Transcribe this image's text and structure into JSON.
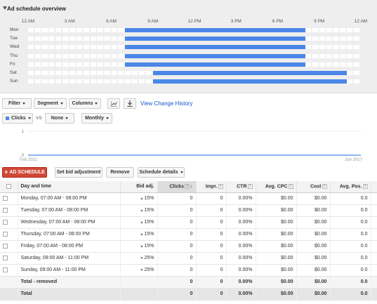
{
  "overview": {
    "title": "Ad schedule overview",
    "hours": [
      "12 AM",
      "3 AM",
      "6 AM",
      "9 AM",
      "12 PM",
      "3 PM",
      "6 PM",
      "9 PM",
      "12 AM"
    ],
    "days": [
      {
        "label": "Mon",
        "start": 7,
        "end": 20
      },
      {
        "label": "Tue",
        "start": 7,
        "end": 20
      },
      {
        "label": "Wed",
        "start": 7,
        "end": 20
      },
      {
        "label": "Thu",
        "start": 7,
        "end": 20
      },
      {
        "label": "Fri",
        "start": 7,
        "end": 20
      },
      {
        "label": "Sat",
        "start": 9,
        "end": 23
      },
      {
        "label": "Sun",
        "start": 9,
        "end": 23
      }
    ],
    "bar_color": "#4a86e8"
  },
  "toolbar": {
    "filter": "Filter",
    "segment": "Segment",
    "columns": "Columns",
    "history": "View Change History"
  },
  "chart_controls": {
    "metric1": "Clicks",
    "vs": "VS",
    "metric2": "None",
    "period": "Monthly"
  },
  "chart_data": {
    "type": "line",
    "x": [
      "Feb 2011",
      "Jun 2017"
    ],
    "series": [
      {
        "values": [
          0,
          0
        ]
      }
    ],
    "ylim": [
      0,
      1
    ],
    "yticks": [
      "1",
      "0"
    ],
    "xlabels": [
      "Feb 2011",
      "Jun 2017"
    ],
    "color": "#4a86e8"
  },
  "actions": {
    "add": "AD SCHEDULE",
    "bid": "Set bid adjustment",
    "remove": "Remove",
    "details": "Schedule details"
  },
  "table": {
    "headers": {
      "day": "Day and time",
      "bid": "Bid adj.",
      "clicks": "Clicks",
      "impr": "Impr.",
      "ctr": "CTR",
      "cpc": "Avg. CPC",
      "cost": "Cost",
      "pos": "Avg. Pos."
    },
    "rows": [
      {
        "day": "Monday, 07:00 AM - 08:00 PM",
        "bid": "15%",
        "dir": "up",
        "clicks": "0",
        "impr": "0",
        "ctr": "0.00%",
        "cpc": "$0.00",
        "cost": "$0.00",
        "pos": "0.0"
      },
      {
        "day": "Tuesday, 07:00 AM - 08:00 PM",
        "bid": "15%",
        "dir": "up",
        "clicks": "0",
        "impr": "0",
        "ctr": "0.00%",
        "cpc": "$0.00",
        "cost": "$0.00",
        "pos": "0.0"
      },
      {
        "day": "Wednesday, 07:00 AM - 08:00 PM",
        "bid": "15%",
        "dir": "up",
        "clicks": "0",
        "impr": "0",
        "ctr": "0.00%",
        "cpc": "$0.00",
        "cost": "$0.00",
        "pos": "0.0"
      },
      {
        "day": "Thursday, 07:00 AM - 08:00 PM",
        "bid": "15%",
        "dir": "up",
        "clicks": "0",
        "impr": "0",
        "ctr": "0.00%",
        "cpc": "$0.00",
        "cost": "$0.00",
        "pos": "0.0"
      },
      {
        "day": "Friday, 07:00 AM - 08:00 PM",
        "bid": "15%",
        "dir": "up",
        "clicks": "0",
        "impr": "0",
        "ctr": "0.00%",
        "cpc": "$0.00",
        "cost": "$0.00",
        "pos": "0.0"
      },
      {
        "day": "Saturday, 09:00 AM - 11:00 PM",
        "bid": "25%",
        "dir": "down",
        "clicks": "0",
        "impr": "0",
        "ctr": "0.00%",
        "cpc": "$0.00",
        "cost": "$0.00",
        "pos": "0.0"
      },
      {
        "day": "Sunday, 09:00 AM - 11:00 PM",
        "bid": "25%",
        "dir": "down",
        "clicks": "0",
        "impr": "0",
        "ctr": "0.00%",
        "cpc": "$0.00",
        "cost": "$0.00",
        "pos": "0.0"
      }
    ],
    "summary": {
      "day": "Total - removed",
      "clicks": "0",
      "impr": "0",
      "ctr": "0.00%",
      "cpc": "$0.00",
      "cost": "$0.00",
      "pos": "0.0"
    },
    "total": {
      "day": "Total",
      "clicks": "0",
      "impr": "0",
      "ctr": "0.00%",
      "cpc": "$0.00",
      "cost": "$0.00",
      "pos": "0.0"
    }
  }
}
